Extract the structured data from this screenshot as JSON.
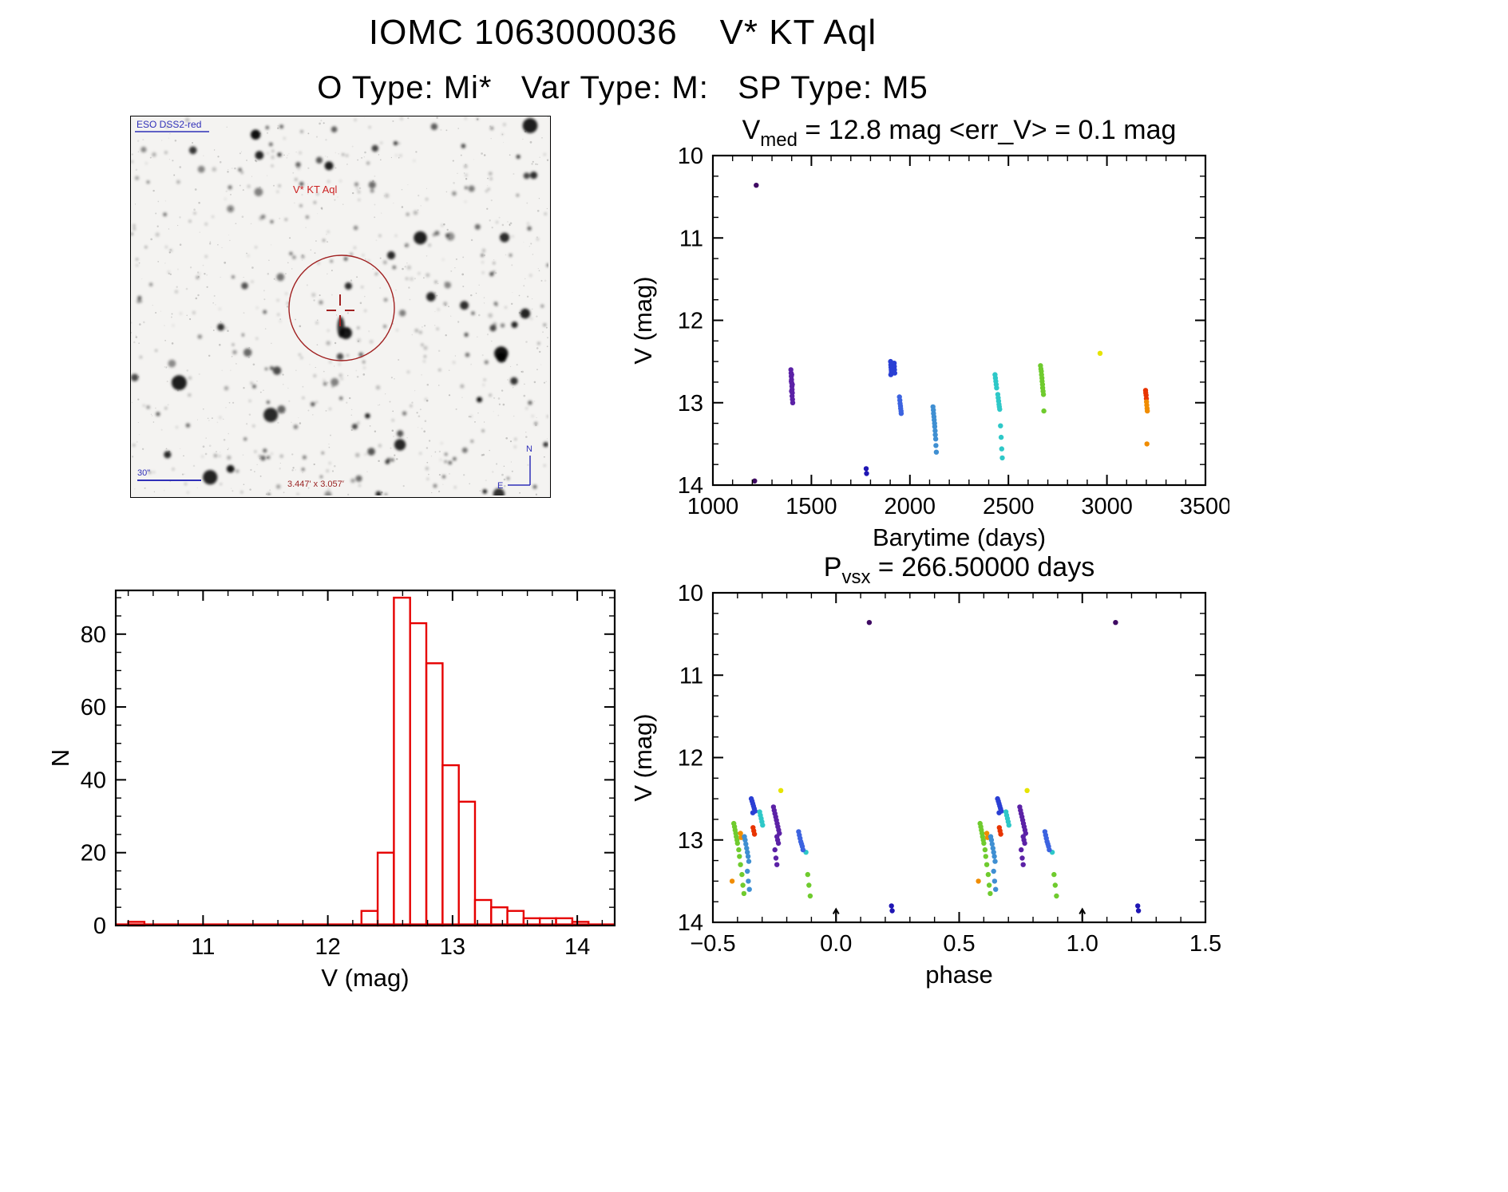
{
  "header": {
    "title": "IOMC 1063000036    V* KT Aql",
    "subtitle": "O Type: Mi*   Var Type: M:   SP Type: M5"
  },
  "finding_chart": {
    "survey_label": "ESO DSS2-red",
    "target_label": "V* KT Aql",
    "scale_label": "30\"",
    "fov_label": "3.447' x 3.057'",
    "compass_north": "N",
    "compass_east": "E",
    "marker_color": "#a02020",
    "annotation_blue": "#2f2fb8"
  },
  "chart_data": [
    {
      "id": "lightcurve",
      "type": "scatter",
      "title": {
        "base": "V",
        "sub": "med",
        "rest": " = 12.8 mag <err_V> = 0.1 mag"
      },
      "xlabel": "Barytime (days)",
      "ylabel": "V (mag)",
      "xlim": [
        1000,
        3500
      ],
      "ylim": [
        10,
        14
      ],
      "y_is_magnitude": true,
      "xticks": [
        1000,
        1500,
        2000,
        2500,
        3000,
        3500
      ],
      "xtick_labels": [
        "1000",
        "1500",
        "2000",
        "2500",
        "3000",
        "3500"
      ],
      "yticks": [
        10,
        11,
        12,
        13,
        14
      ],
      "ytick_labels": [
        "10",
        "11",
        "12",
        "13",
        "14"
      ],
      "xminor_step": 100,
      "yminor_step": 0.25,
      "series": [
        {
          "name": "epoch-1-violet",
          "color": "#3f0a63",
          "points": [
            [
              1220,
              10.36
            ],
            [
              1212,
              13.95
            ]
          ]
        },
        {
          "name": "epoch-2-purple",
          "color": "#5b21a6",
          "points": [
            [
              1396,
              12.6
            ],
            [
              1397,
              12.64
            ],
            [
              1398,
              12.68
            ],
            [
              1399,
              12.72
            ],
            [
              1400,
              12.76
            ],
            [
              1401,
              12.8
            ],
            [
              1402,
              12.84
            ],
            [
              1403,
              12.88
            ],
            [
              1398,
              12.74
            ],
            [
              1400,
              12.66
            ],
            [
              1402,
              12.92
            ],
            [
              1404,
              12.96
            ],
            [
              1405,
              13.0
            ],
            [
              1403,
              12.78
            ],
            [
              1399,
              12.86
            ]
          ]
        },
        {
          "name": "epoch-3-darkblue",
          "color": "#1f16b4",
          "points": [
            [
              1778,
              13.8
            ],
            [
              1780,
              13.86
            ]
          ]
        },
        {
          "name": "epoch-4-blue",
          "color": "#2a3fd4",
          "points": [
            [
              1902,
              12.5
            ],
            [
              1903,
              12.54
            ],
            [
              1904,
              12.57
            ],
            [
              1905,
              12.6
            ],
            [
              1906,
              12.63
            ],
            [
              1903,
              12.66
            ],
            [
              1920,
              12.52
            ],
            [
              1921,
              12.56
            ],
            [
              1922,
              12.6
            ],
            [
              1923,
              12.64
            ]
          ]
        },
        {
          "name": "epoch-5-blue2",
          "color": "#3c63e0",
          "points": [
            [
              1947,
              12.93
            ],
            [
              1949,
              12.97
            ],
            [
              1950,
              13.01
            ],
            [
              1952,
              13.04
            ],
            [
              1953,
              13.07
            ],
            [
              1955,
              13.1
            ],
            [
              1956,
              13.13
            ]
          ]
        },
        {
          "name": "epoch-6-steelblue",
          "color": "#3f8fd2",
          "points": [
            [
              2117,
              13.05
            ],
            [
              2119,
              13.09
            ],
            [
              2120,
              13.13
            ],
            [
              2122,
              13.17
            ],
            [
              2123,
              13.21
            ],
            [
              2125,
              13.25
            ],
            [
              2126,
              13.29
            ],
            [
              2128,
              13.34
            ],
            [
              2129,
              13.39
            ],
            [
              2131,
              13.44
            ],
            [
              2132,
              13.52
            ],
            [
              2134,
              13.6
            ]
          ]
        },
        {
          "name": "epoch-7-cyan",
          "color": "#2ec8c8",
          "points": [
            [
              2432,
              12.66
            ],
            [
              2434,
              12.7
            ],
            [
              2436,
              12.74
            ],
            [
              2438,
              12.78
            ],
            [
              2440,
              12.82
            ],
            [
              2446,
              12.9
            ],
            [
              2448,
              12.94
            ],
            [
              2450,
              12.98
            ],
            [
              2452,
              13.02
            ],
            [
              2454,
              13.05
            ],
            [
              2456,
              13.08
            ],
            [
              2460,
              13.28
            ],
            [
              2463,
              13.42
            ],
            [
              2466,
              13.56
            ],
            [
              2469,
              13.67
            ]
          ]
        },
        {
          "name": "epoch-8-green",
          "color": "#6fcb2e",
          "points": [
            [
              2663,
              12.55
            ],
            [
              2665,
              12.59
            ],
            [
              2667,
              12.62
            ],
            [
              2668,
              12.66
            ],
            [
              2670,
              12.7
            ],
            [
              2671,
              12.74
            ],
            [
              2673,
              12.78
            ],
            [
              2674,
              12.82
            ],
            [
              2676,
              12.86
            ],
            [
              2678,
              12.9
            ],
            [
              2680,
              13.1
            ]
          ]
        },
        {
          "name": "epoch-9-yellow",
          "color": "#e6e400",
          "points": [
            [
              2965,
              12.4
            ]
          ]
        },
        {
          "name": "epoch-10-red",
          "color": "#e83400",
          "points": [
            [
              3196,
              12.85
            ],
            [
              3197,
              12.88
            ],
            [
              3199,
              12.91
            ],
            [
              3200,
              12.95
            ]
          ]
        },
        {
          "name": "epoch-11-orange",
          "color": "#f08c00",
          "points": [
            [
              3201,
              12.99
            ],
            [
              3202,
              13.03
            ],
            [
              3204,
              13.07
            ],
            [
              3205,
              13.1
            ],
            [
              3203,
              13.5
            ]
          ]
        }
      ]
    },
    {
      "id": "histogram",
      "type": "bar",
      "xlabel": "V (mag)",
      "ylabel": "N",
      "xlim": [
        10.3,
        14.3
      ],
      "ylim": [
        0,
        92
      ],
      "xticks": [
        11,
        12,
        13,
        14
      ],
      "xtick_labels": [
        "11",
        "12",
        "13",
        "14"
      ],
      "yticks": [
        0,
        20,
        40,
        60,
        80
      ],
      "ytick_labels": [
        "0",
        "20",
        "40",
        "60",
        "80"
      ],
      "xminor_step": 0.2,
      "yminor_step": 5,
      "bar_color": "#e60000",
      "bin_width": 0.13,
      "bins": [
        {
          "x": 10.4,
          "n": 1
        },
        {
          "x": 12.27,
          "n": 4
        },
        {
          "x": 12.4,
          "n": 20
        },
        {
          "x": 12.53,
          "n": 90
        },
        {
          "x": 12.66,
          "n": 83
        },
        {
          "x": 12.79,
          "n": 72
        },
        {
          "x": 12.92,
          "n": 44
        },
        {
          "x": 13.05,
          "n": 34
        },
        {
          "x": 13.18,
          "n": 7
        },
        {
          "x": 13.31,
          "n": 5
        },
        {
          "x": 13.44,
          "n": 4
        },
        {
          "x": 13.57,
          "n": 2
        },
        {
          "x": 13.7,
          "n": 2
        },
        {
          "x": 13.83,
          "n": 2
        },
        {
          "x": 13.96,
          "n": 1
        }
      ]
    },
    {
      "id": "phase",
      "type": "scatter",
      "title": {
        "base": "P",
        "sub": "vsx",
        "rest": " = 266.50000 days"
      },
      "xlabel": "phase",
      "ylabel": "V (mag)",
      "xlim": [
        -0.5,
        1.5
      ],
      "ylim": [
        10,
        14
      ],
      "y_is_magnitude": true,
      "wrap_phase": true,
      "period_days": 266.5,
      "xticks": [
        -0.5,
        0.0,
        0.5,
        1.0,
        1.5
      ],
      "xtick_labels": [
        "−0.5",
        "0.0",
        "0.5",
        "1.0",
        "1.5"
      ],
      "yticks": [
        10,
        11,
        12,
        13,
        14
      ],
      "ytick_labels": [
        "10",
        "11",
        "12",
        "13",
        "14"
      ],
      "xminor_step": 0.1,
      "yminor_step": 0.25,
      "epoch_markers": [
        0.0,
        1.0
      ],
      "series": [
        {
          "name": "outlier-violet",
          "color": "#3f0a63",
          "points": [
            [
              0.135,
              10.36
            ]
          ]
        },
        {
          "name": "faint-darkblue",
          "color": "#1f16b4",
          "points": [
            [
              0.225,
              13.8
            ],
            [
              0.228,
              13.86
            ]
          ]
        },
        {
          "name": "green",
          "color": "#6fcb2e",
          "points": [
            [
              0.585,
              12.8
            ],
            [
              0.588,
              12.84
            ],
            [
              0.59,
              12.88
            ],
            [
              0.593,
              12.92
            ],
            [
              0.595,
              12.96
            ],
            [
              0.598,
              13.0
            ],
            [
              0.6,
              13.04
            ],
            [
              0.605,
              13.12
            ],
            [
              0.608,
              13.2
            ],
            [
              0.612,
              13.3
            ],
            [
              0.618,
              13.42
            ],
            [
              0.622,
              13.55
            ],
            [
              0.626,
              13.65
            ],
            [
              0.885,
              13.42
            ],
            [
              0.89,
              13.55
            ],
            [
              0.895,
              13.68
            ]
          ]
        },
        {
          "name": "orange",
          "color": "#f08c00",
          "points": [
            [
              0.578,
              13.5
            ],
            [
              0.612,
              12.92
            ],
            [
              0.615,
              12.97
            ]
          ]
        },
        {
          "name": "steel-blue",
          "color": "#3f8fd2",
          "points": [
            [
              0.628,
              12.96
            ],
            [
              0.631,
              13.0
            ],
            [
              0.634,
              13.05
            ],
            [
              0.637,
              13.1
            ],
            [
              0.64,
              13.15
            ],
            [
              0.643,
              13.2
            ],
            [
              0.646,
              13.26
            ],
            [
              0.64,
              13.38
            ],
            [
              0.644,
              13.5
            ],
            [
              0.648,
              13.6
            ]
          ]
        },
        {
          "name": "blue",
          "color": "#2a3fd4",
          "points": [
            [
              0.656,
              12.5
            ],
            [
              0.659,
              12.53
            ],
            [
              0.662,
              12.56
            ],
            [
              0.665,
              12.59
            ],
            [
              0.668,
              12.62
            ],
            [
              0.671,
              12.65
            ],
            [
              0.662,
              12.67
            ]
          ]
        },
        {
          "name": "red",
          "color": "#e83400",
          "points": [
            [
              0.663,
              12.85
            ],
            [
              0.666,
              12.89
            ],
            [
              0.669,
              12.93
            ]
          ]
        },
        {
          "name": "cyan",
          "color": "#2ec8c8",
          "points": [
            [
              0.69,
              12.66
            ],
            [
              0.693,
              12.7
            ],
            [
              0.696,
              12.74
            ],
            [
              0.699,
              12.78
            ],
            [
              0.702,
              12.82
            ],
            [
              0.878,
              13.15
            ]
          ]
        },
        {
          "name": "purple",
          "color": "#5b21a6",
          "points": [
            [
              0.746,
              12.6
            ],
            [
              0.749,
              12.64
            ],
            [
              0.752,
              12.68
            ],
            [
              0.755,
              12.72
            ],
            [
              0.758,
              12.76
            ],
            [
              0.761,
              12.8
            ],
            [
              0.764,
              12.84
            ],
            [
              0.767,
              12.88
            ],
            [
              0.77,
              12.92
            ],
            [
              0.76,
              12.96
            ],
            [
              0.763,
              13.0
            ],
            [
              0.766,
              13.04
            ],
            [
              0.752,
              13.12
            ],
            [
              0.756,
              13.22
            ],
            [
              0.76,
              13.3
            ]
          ]
        },
        {
          "name": "yellow",
          "color": "#e6e400",
          "points": [
            [
              0.776,
              12.4
            ]
          ]
        },
        {
          "name": "blue-2",
          "color": "#3c63e0",
          "points": [
            [
              0.848,
              12.9
            ],
            [
              0.851,
              12.94
            ],
            [
              0.854,
              12.98
            ],
            [
              0.857,
              13.02
            ],
            [
              0.86,
              13.05
            ],
            [
              0.863,
              13.08
            ],
            [
              0.866,
              13.12
            ]
          ]
        }
      ]
    }
  ]
}
